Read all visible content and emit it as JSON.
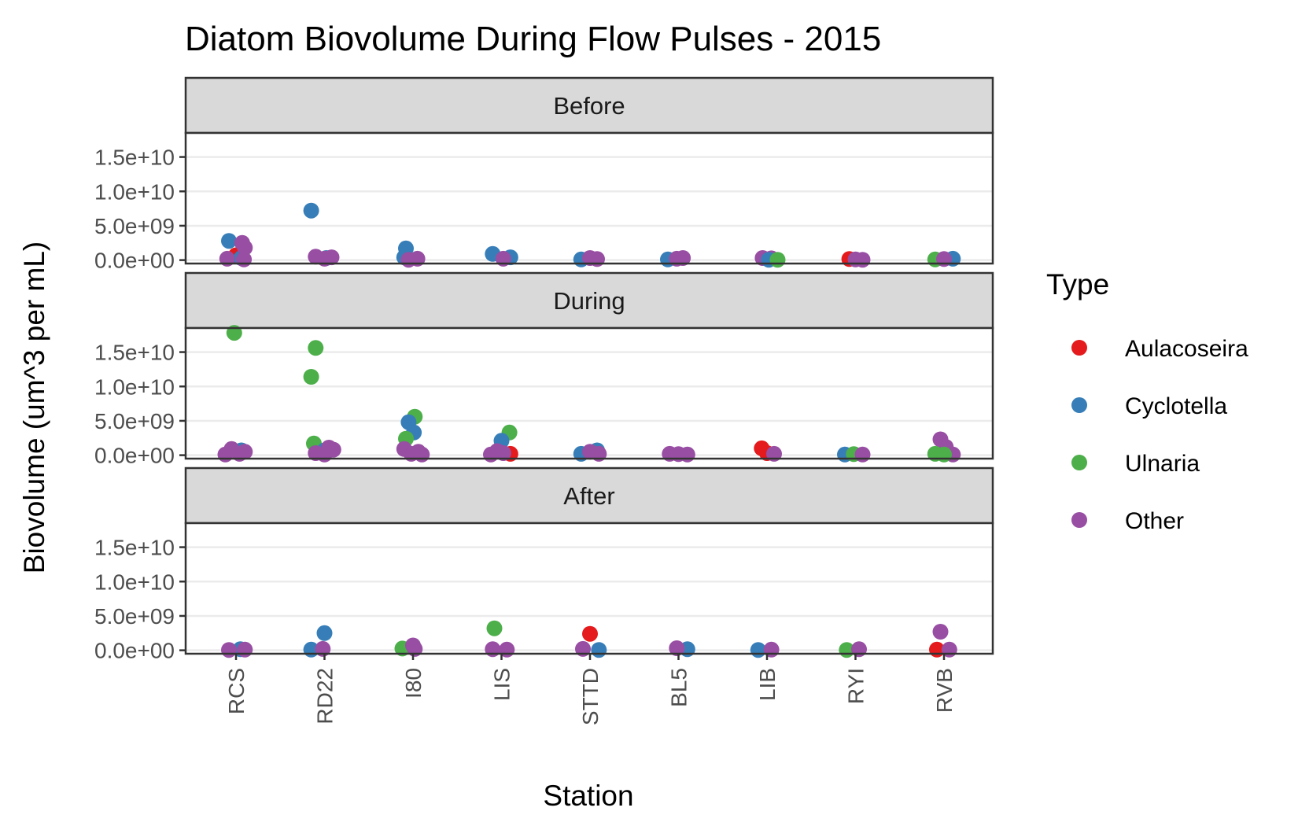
{
  "chart_data": {
    "type": "scatter",
    "title": "Diatom Biovolume During Flow Pulses - 2015",
    "xlabel": "Station",
    "ylabel": "Biovolume (um^3 per mL)",
    "categories": [
      "RCS",
      "RD22",
      "I80",
      "LIS",
      "STTD",
      "BL5",
      "LIB",
      "RYI",
      "RVB"
    ],
    "y_ticks": [
      {
        "value": 0,
        "label": "0.0e+00"
      },
      {
        "value": 5000000000,
        "label": "5.0e+09"
      },
      {
        "value": 10000000000,
        "label": "1.0e+10"
      },
      {
        "value": 15000000000,
        "label": "1.5e+10"
      }
    ],
    "ylim": [
      -500000000,
      18500000000
    ],
    "grid": true,
    "legend": {
      "title": "Type",
      "placement": "right",
      "items": [
        {
          "name": "Aulacoseira",
          "color": "#E41A1C"
        },
        {
          "name": "Cyclotella",
          "color": "#377EB8"
        },
        {
          "name": "Ulnaria",
          "color": "#4DAF4A"
        },
        {
          "name": "Other",
          "color": "#984EA3"
        }
      ]
    },
    "facets": [
      {
        "label": "Before",
        "points": [
          {
            "station": "RCS",
            "type": "Aulacoseira",
            "y": 700000000,
            "jitter": 0.0
          },
          {
            "station": "RCS",
            "type": "Cyclotella",
            "y": 2800000000,
            "jitter": -0.08
          },
          {
            "station": "RCS",
            "type": "Cyclotella",
            "y": 300000000,
            "jitter": 0.06
          },
          {
            "station": "RCS",
            "type": "Other",
            "y": 2500000000,
            "jitter": 0.07
          },
          {
            "station": "RCS",
            "type": "Other",
            "y": 1800000000,
            "jitter": 0.1
          },
          {
            "station": "RCS",
            "type": "Other",
            "y": 200000000,
            "jitter": -0.1
          },
          {
            "station": "RCS",
            "type": "Other",
            "y": 100000000,
            "jitter": 0.09
          },
          {
            "station": "RD22",
            "type": "Cyclotella",
            "y": 7200000000,
            "jitter": -0.15
          },
          {
            "station": "RD22",
            "type": "Cyclotella",
            "y": 300000000,
            "jitter": 0.02
          },
          {
            "station": "RD22",
            "type": "Other",
            "y": 500000000,
            "jitter": -0.1
          },
          {
            "station": "RD22",
            "type": "Other",
            "y": 400000000,
            "jitter": 0.08
          },
          {
            "station": "RD22",
            "type": "Other",
            "y": 200000000,
            "jitter": 0.0
          },
          {
            "station": "I80",
            "type": "Cyclotella",
            "y": 1700000000,
            "jitter": -0.08
          },
          {
            "station": "I80",
            "type": "Cyclotella",
            "y": 400000000,
            "jitter": -0.1
          },
          {
            "station": "I80",
            "type": "Other",
            "y": 200000000,
            "jitter": 0.05
          },
          {
            "station": "I80",
            "type": "Other",
            "y": 50000000,
            "jitter": -0.05
          },
          {
            "station": "LIS",
            "type": "Cyclotella",
            "y": 900000000,
            "jitter": -0.1
          },
          {
            "station": "LIS",
            "type": "Cyclotella",
            "y": 400000000,
            "jitter": 0.1
          },
          {
            "station": "LIS",
            "type": "Other",
            "y": 200000000,
            "jitter": 0.02
          },
          {
            "station": "STTD",
            "type": "Cyclotella",
            "y": 100000000,
            "jitter": -0.1
          },
          {
            "station": "STTD",
            "type": "Other",
            "y": 300000000,
            "jitter": 0.0
          },
          {
            "station": "STTD",
            "type": "Other",
            "y": 150000000,
            "jitter": 0.08
          },
          {
            "station": "BL5",
            "type": "Cyclotella",
            "y": 100000000,
            "jitter": -0.12
          },
          {
            "station": "BL5",
            "type": "Other",
            "y": 300000000,
            "jitter": 0.05
          },
          {
            "station": "BL5",
            "type": "Other",
            "y": 200000000,
            "jitter": -0.02
          },
          {
            "station": "LIB",
            "type": "Other",
            "y": 300000000,
            "jitter": -0.05
          },
          {
            "station": "LIB",
            "type": "Other",
            "y": 250000000,
            "jitter": 0.05
          },
          {
            "station": "LIB",
            "type": "Cyclotella",
            "y": 50000000,
            "jitter": 0.02
          },
          {
            "station": "LIB",
            "type": "Ulnaria",
            "y": 50000000,
            "jitter": 0.12
          },
          {
            "station": "RYI",
            "type": "Aulacoseira",
            "y": 150000000,
            "jitter": -0.07
          },
          {
            "station": "RYI",
            "type": "Other",
            "y": 100000000,
            "jitter": 0.0
          },
          {
            "station": "RYI",
            "type": "Other",
            "y": 50000000,
            "jitter": 0.08
          },
          {
            "station": "RVB",
            "type": "Ulnaria",
            "y": 100000000,
            "jitter": -0.1
          },
          {
            "station": "RVB",
            "type": "Cyclotella",
            "y": 200000000,
            "jitter": 0.1
          },
          {
            "station": "RVB",
            "type": "Other",
            "y": 150000000,
            "jitter": 0.0
          }
        ]
      },
      {
        "label": "During",
        "points": [
          {
            "station": "RCS",
            "type": "Ulnaria",
            "y": 17800000000,
            "jitter": -0.02
          },
          {
            "station": "RCS",
            "type": "Cyclotella",
            "y": 700000000,
            "jitter": 0.06
          },
          {
            "station": "RCS",
            "type": "Other",
            "y": 900000000,
            "jitter": -0.05
          },
          {
            "station": "RCS",
            "type": "Other",
            "y": 500000000,
            "jitter": 0.1
          },
          {
            "station": "RCS",
            "type": "Other",
            "y": 100000000,
            "jitter": -0.12
          },
          {
            "station": "RCS",
            "type": "Other",
            "y": 200000000,
            "jitter": 0.04
          },
          {
            "station": "RD22",
            "type": "Ulnaria",
            "y": 15600000000,
            "jitter": -0.1
          },
          {
            "station": "RD22",
            "type": "Ulnaria",
            "y": 11400000000,
            "jitter": -0.15
          },
          {
            "station": "RD22",
            "type": "Ulnaria",
            "y": 1700000000,
            "jitter": -0.12
          },
          {
            "station": "RD22",
            "type": "Cyclotella",
            "y": 700000000,
            "jitter": 0.0
          },
          {
            "station": "RD22",
            "type": "Other",
            "y": 1100000000,
            "jitter": 0.05
          },
          {
            "station": "RD22",
            "type": "Other",
            "y": 800000000,
            "jitter": 0.1
          },
          {
            "station": "RD22",
            "type": "Other",
            "y": 300000000,
            "jitter": -0.1
          },
          {
            "station": "RD22",
            "type": "Other",
            "y": 100000000,
            "jitter": 0.0
          },
          {
            "station": "I80",
            "type": "Ulnaria",
            "y": 5600000000,
            "jitter": 0.02
          },
          {
            "station": "I80",
            "type": "Cyclotella",
            "y": 4800000000,
            "jitter": -0.05
          },
          {
            "station": "I80",
            "type": "Cyclotella",
            "y": 3300000000,
            "jitter": 0.01
          },
          {
            "station": "I80",
            "type": "Ulnaria",
            "y": 2400000000,
            "jitter": -0.08
          },
          {
            "station": "I80",
            "type": "Other",
            "y": 900000000,
            "jitter": -0.1
          },
          {
            "station": "I80",
            "type": "Other",
            "y": 500000000,
            "jitter": 0.06
          },
          {
            "station": "I80",
            "type": "Other",
            "y": 200000000,
            "jitter": -0.02
          },
          {
            "station": "I80",
            "type": "Other",
            "y": 100000000,
            "jitter": 0.1
          },
          {
            "station": "LIS",
            "type": "Ulnaria",
            "y": 3300000000,
            "jitter": 0.09
          },
          {
            "station": "LIS",
            "type": "Cyclotella",
            "y": 2100000000,
            "jitter": 0.0
          },
          {
            "station": "LIS",
            "type": "Aulacoseira",
            "y": 200000000,
            "jitter": 0.1
          },
          {
            "station": "LIS",
            "type": "Other",
            "y": 600000000,
            "jitter": -0.05
          },
          {
            "station": "LIS",
            "type": "Other",
            "y": 300000000,
            "jitter": 0.02
          },
          {
            "station": "LIS",
            "type": "Other",
            "y": 100000000,
            "jitter": -0.12
          },
          {
            "station": "STTD",
            "type": "Cyclotella",
            "y": 700000000,
            "jitter": 0.08
          },
          {
            "station": "STTD",
            "type": "Cyclotella",
            "y": 200000000,
            "jitter": -0.1
          },
          {
            "station": "STTD",
            "type": "Other",
            "y": 500000000,
            "jitter": 0.0
          },
          {
            "station": "STTD",
            "type": "Other",
            "y": 200000000,
            "jitter": 0.1
          },
          {
            "station": "BL5",
            "type": "Other",
            "y": 200000000,
            "jitter": -0.1
          },
          {
            "station": "BL5",
            "type": "Other",
            "y": 150000000,
            "jitter": 0.0
          },
          {
            "station": "BL5",
            "type": "Other",
            "y": 100000000,
            "jitter": 0.1
          },
          {
            "station": "LIB",
            "type": "Aulacoseira",
            "y": 1000000000,
            "jitter": -0.06
          },
          {
            "station": "LIB",
            "type": "Aulacoseira",
            "y": 300000000,
            "jitter": 0.0
          },
          {
            "station": "LIB",
            "type": "Other",
            "y": 200000000,
            "jitter": 0.08
          },
          {
            "station": "RYI",
            "type": "Cyclotella",
            "y": 100000000,
            "jitter": -0.12
          },
          {
            "station": "RYI",
            "type": "Ulnaria",
            "y": 150000000,
            "jitter": -0.02
          },
          {
            "station": "RYI",
            "type": "Other",
            "y": 100000000,
            "jitter": 0.08
          },
          {
            "station": "RVB",
            "type": "Other",
            "y": 2300000000,
            "jitter": -0.04
          },
          {
            "station": "RVB",
            "type": "Other",
            "y": 1200000000,
            "jitter": 0.02
          },
          {
            "station": "RVB",
            "type": "Other",
            "y": 100000000,
            "jitter": 0.1
          },
          {
            "station": "RVB",
            "type": "Ulnaria",
            "y": 200000000,
            "jitter": -0.1
          },
          {
            "station": "RVB",
            "type": "Ulnaria",
            "y": 100000000,
            "jitter": 0.0
          }
        ]
      },
      {
        "label": "After",
        "points": [
          {
            "station": "RCS",
            "type": "Cyclotella",
            "y": 150000000,
            "jitter": 0.05
          },
          {
            "station": "RCS",
            "type": "Other",
            "y": 50000000,
            "jitter": -0.08
          },
          {
            "station": "RCS",
            "type": "Other",
            "y": 100000000,
            "jitter": 0.1
          },
          {
            "station": "RD22",
            "type": "Cyclotella",
            "y": 2500000000,
            "jitter": 0.0
          },
          {
            "station": "RD22",
            "type": "Cyclotella",
            "y": 100000000,
            "jitter": -0.15
          },
          {
            "station": "RD22",
            "type": "Other",
            "y": 200000000,
            "jitter": -0.02
          },
          {
            "station": "I80",
            "type": "Ulnaria",
            "y": 250000000,
            "jitter": -0.12
          },
          {
            "station": "I80",
            "type": "Other",
            "y": 700000000,
            "jitter": 0.0
          },
          {
            "station": "I80",
            "type": "Other",
            "y": 200000000,
            "jitter": 0.02
          },
          {
            "station": "LIS",
            "type": "Ulnaria",
            "y": 3200000000,
            "jitter": -0.08
          },
          {
            "station": "LIS",
            "type": "Other",
            "y": 150000000,
            "jitter": -0.1
          },
          {
            "station": "LIS",
            "type": "Other",
            "y": 100000000,
            "jitter": 0.06
          },
          {
            "station": "STTD",
            "type": "Aulacoseira",
            "y": 2400000000,
            "jitter": 0.0
          },
          {
            "station": "STTD",
            "type": "Cyclotella",
            "y": 50000000,
            "jitter": 0.1
          },
          {
            "station": "STTD",
            "type": "Other",
            "y": 200000000,
            "jitter": -0.08
          },
          {
            "station": "BL5",
            "type": "Cyclotella",
            "y": 150000000,
            "jitter": 0.1
          },
          {
            "station": "BL5",
            "type": "Other",
            "y": 300000000,
            "jitter": -0.02
          },
          {
            "station": "LIB",
            "type": "Cyclotella",
            "y": 50000000,
            "jitter": -0.1
          },
          {
            "station": "LIB",
            "type": "Other",
            "y": 100000000,
            "jitter": 0.05
          },
          {
            "station": "RYI",
            "type": "Ulnaria",
            "y": 50000000,
            "jitter": -0.1
          },
          {
            "station": "RYI",
            "type": "Other",
            "y": 150000000,
            "jitter": 0.04
          },
          {
            "station": "RVB",
            "type": "Other",
            "y": 2700000000,
            "jitter": -0.04
          },
          {
            "station": "RVB",
            "type": "Aulacoseira",
            "y": 100000000,
            "jitter": -0.08
          },
          {
            "station": "RVB",
            "type": "Other",
            "y": 100000000,
            "jitter": 0.06
          }
        ]
      }
    ]
  }
}
